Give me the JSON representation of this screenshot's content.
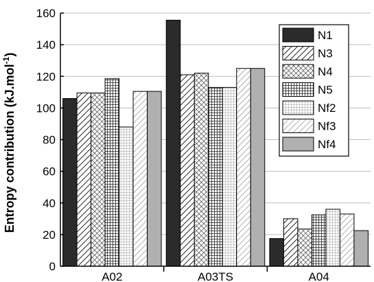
{
  "chart_data": {
    "type": "bar",
    "title": "",
    "xlabel": "",
    "ylabel": "Entropy contribution (kJ.mol",
    "ylabel_sup": "-1",
    "ylabel_close": ")",
    "ylim": [
      0,
      160
    ],
    "yticks": [
      "0",
      "20",
      "40",
      "60",
      "80",
      "100",
      "120",
      "140",
      "160"
    ],
    "grid": true,
    "legend_position": "top-right",
    "categories": [
      "A02",
      "A03TS",
      "A04"
    ],
    "series": [
      {
        "name": "N1",
        "values": [
          106,
          155.5,
          17.5
        ],
        "fill": "#2b2b2b",
        "pattern": "solid"
      },
      {
        "name": "N3",
        "values": [
          109.5,
          121,
          30
        ],
        "fill": "#ffffff",
        "pattern": "diag-dense"
      },
      {
        "name": "N4",
        "values": [
          109.5,
          122,
          23.5
        ],
        "fill": "#ffffff",
        "pattern": "crosshatch"
      },
      {
        "name": "N5",
        "values": [
          118.5,
          113,
          32.5
        ],
        "fill": "#ffffff",
        "pattern": "grid-dense"
      },
      {
        "name": "Nf2",
        "values": [
          88,
          113,
          36
        ],
        "fill": "#ffffff",
        "pattern": "grid-light"
      },
      {
        "name": "Nf3",
        "values": [
          110.5,
          125,
          33
        ],
        "fill": "#ffffff",
        "pattern": "diag-light"
      },
      {
        "name": "Nf4",
        "values": [
          110.5,
          125,
          22.5
        ],
        "fill": "#b0b0b0",
        "pattern": "solid"
      }
    ]
  }
}
